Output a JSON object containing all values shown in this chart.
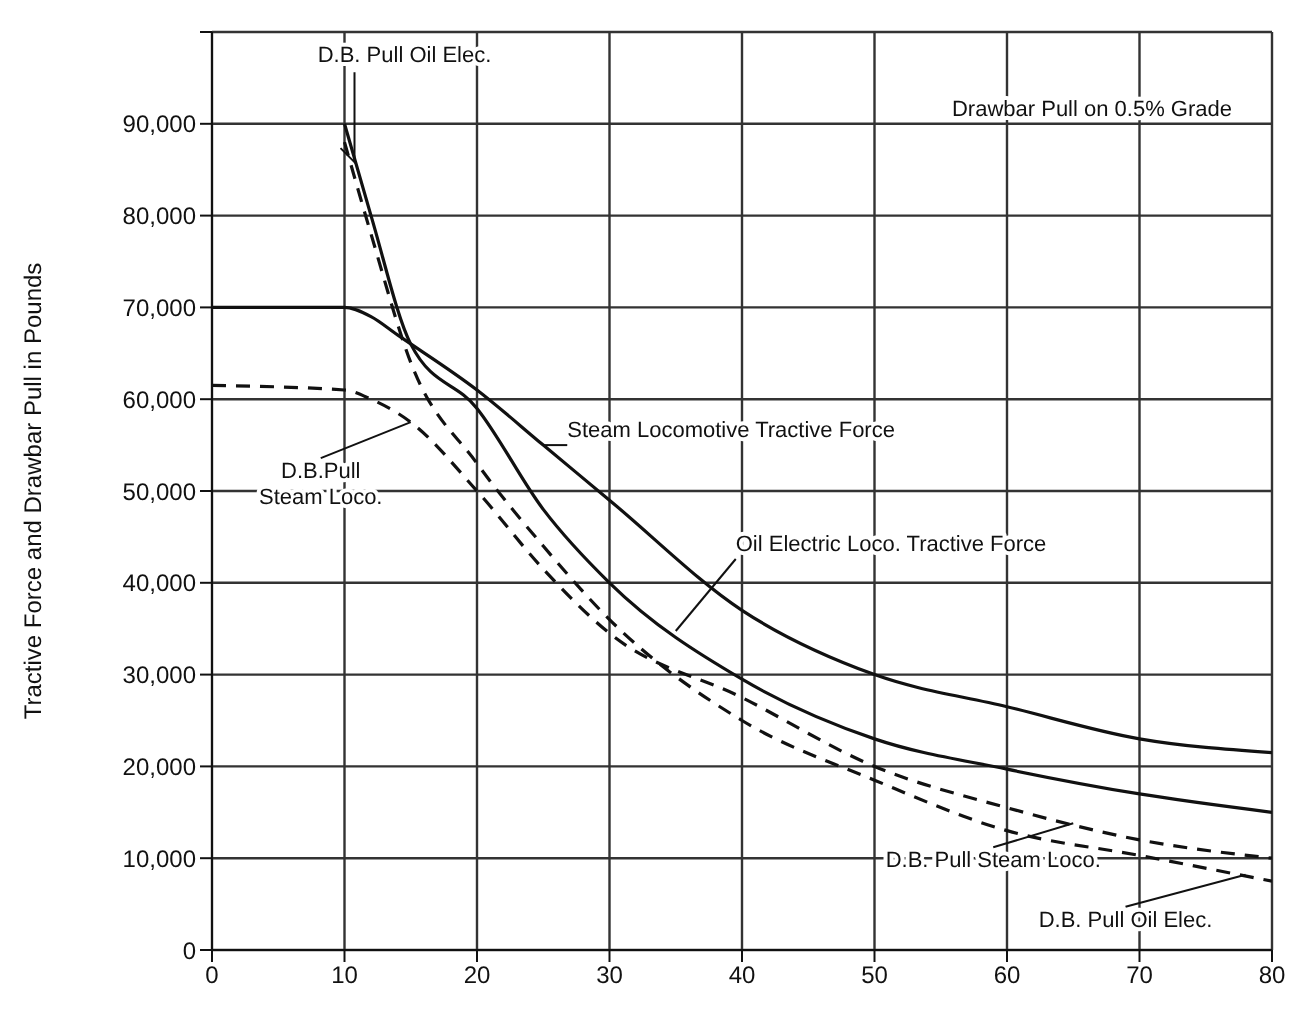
{
  "chart_data": {
    "type": "line",
    "ylabel": "Tractive Force and Drawbar Pull in Pounds",
    "xlim": [
      0,
      80
    ],
    "xticks": [
      0,
      10,
      20,
      30,
      40,
      50,
      60,
      70,
      80
    ],
    "ylim": [
      0,
      100000
    ],
    "yticks": [
      {
        "value": 0,
        "label": "0"
      },
      {
        "value": 10000,
        "label": "10,000"
      },
      {
        "value": 20000,
        "label": "20,000"
      },
      {
        "value": 30000,
        "label": "30,000"
      },
      {
        "value": 40000,
        "label": "40,000"
      },
      {
        "value": 50000,
        "label": "50,000"
      },
      {
        "value": 60000,
        "label": "60,000"
      },
      {
        "value": 70000,
        "label": "70,000"
      },
      {
        "value": 80000,
        "label": "80,000"
      },
      {
        "value": 90000,
        "label": "90,000"
      },
      {
        "value": 100000,
        "label": null
      }
    ],
    "grid": true,
    "legend": false,
    "marker": "none",
    "series": [
      {
        "color": "#111111",
        "line_style": "solid",
        "x": [
          0,
          10,
          12,
          14,
          20,
          25,
          30,
          40,
          50,
          60,
          70,
          80
        ],
        "values": [
          70000,
          70000,
          69000,
          67000,
          61000,
          55000,
          49000,
          37000,
          30000,
          26500,
          23000,
          21500
        ]
      },
      {
        "color": "#111111",
        "line_style": "solid",
        "x": [
          10,
          12,
          15,
          20,
          25,
          30,
          40,
          50,
          60,
          70,
          80
        ],
        "values": [
          90000,
          80000,
          66000,
          59000,
          48000,
          40000,
          29500,
          23000,
          19700,
          17000,
          15000
        ]
      },
      {
        "color": "#111111",
        "line_style": "dashed",
        "x": [
          10,
          12,
          15,
          20,
          25,
          30,
          40,
          50,
          60,
          70,
          80
        ],
        "values": [
          88000,
          78000,
          64000,
          53000,
          44000,
          36000,
          25000,
          18500,
          13000,
          10300,
          7500
        ]
      },
      {
        "color": "#111111",
        "line_style": "dashed",
        "x": [
          0,
          10,
          12,
          15,
          20,
          25,
          30,
          40,
          50,
          60,
          70,
          80
        ],
        "values": [
          61500,
          61000,
          60000,
          57500,
          50000,
          41500,
          34500,
          27500,
          20000,
          15500,
          12000,
          10000
        ]
      }
    ],
    "annotations": [
      {
        "text": "D.B. Pull Oil Elec.",
        "x": 10,
        "y": 88000
      },
      "Drawbar Pull on 0.5% Grade",
      {
        "text": "D.B.Pull Steam Loco.",
        "x": 15,
        "y": 57500
      },
      {
        "text": "Steam Locomotive Tractive Force",
        "x": 25,
        "y": 55000
      },
      {
        "text": "Oil Electric Loco. Tractive Force",
        "x": 35,
        "y": 34750
      },
      {
        "text": "D.B. Pull Steam Loco.",
        "x": 65,
        "y": 13800
      },
      {
        "text": "D.B. Pull Oil Elec.",
        "x": 78,
        "y": 8200
      }
    ]
  }
}
